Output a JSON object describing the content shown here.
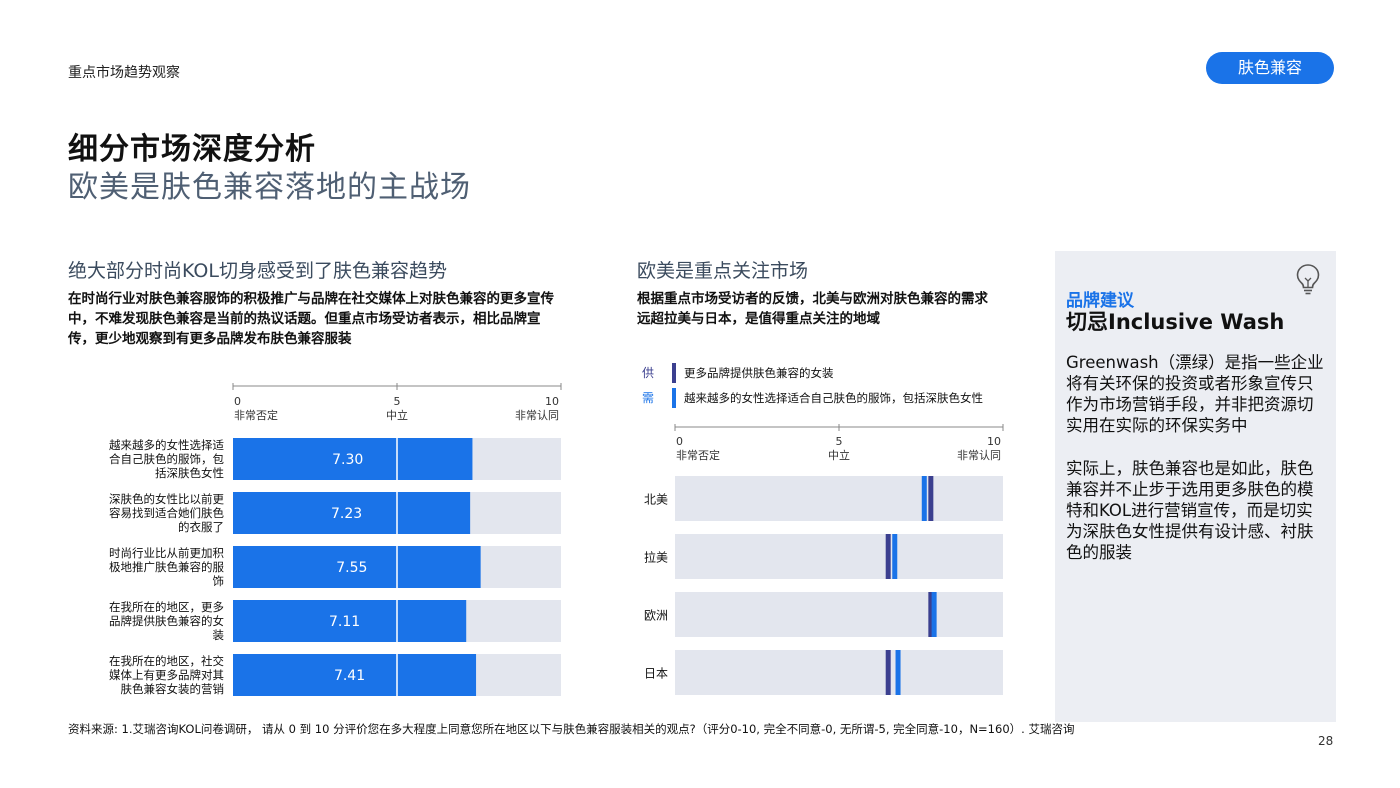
{
  "header": {
    "section": "重点市场趋势观察",
    "tag": "肤色兼容"
  },
  "titles": {
    "line1": "细分市场深度分析",
    "line2": "欧美是肤色兼容落地的主战场"
  },
  "left": {
    "heading": "绝大部分时尚KOL切身感受到了肤色兼容趋势",
    "description": "在时尚行业对肤色兼容服饰的积极推广与品牌在社交媒体上对肤色兼容的更多宣传中，不难发现肤色兼容是当前的热议话题。但重点市场受访者表示，相比品牌宣传，更少地观察到有更多品牌发布肤色兼容服装"
  },
  "middle": {
    "heading": "欧美是重点关注市场",
    "description": "根据重点市场受访者的反馈，北美与欧洲对肤色兼容的需求远超拉美与日本，是值得重点关注的地域"
  },
  "panel": {
    "kicker": "品牌建议",
    "title": "切忌Inclusive Wash",
    "p1": "Greenwash（漂绿）是指一些企业将有关环保的投资或者形象宣传只作为市场营销手段，并非把资源切实用在实际的环保实务中",
    "p2": "实际上，肤色兼容也是如此，肤色兼容并不止步于选用更多肤色的模特和KOL进行营销宣传，而是切实为深肤色女性提供有设计感、衬肤色的服装"
  },
  "footnote": "资料来源: 1.艾瑞咨询KOL问卷调研， 请从 0 到 10 分评价您在多大程度上同意您所在地区以下与肤色兼容服装相关的观点?（评分0-10, 完全不同意-0, 无所谓-5, 完全同意-10，N=160）. 艾瑞咨询",
  "page_number": "28",
  "colors": {
    "accent": "#1a73e8",
    "supply": "#3b3f8f",
    "demand": "#1a73e8",
    "track": "#e3e6ee",
    "title_gray": "#4f5f73"
  },
  "chart_data": [
    {
      "type": "bar",
      "orientation": "horizontal",
      "xlim": [
        0,
        10
      ],
      "ticks": [
        {
          "value": 0,
          "label": "0",
          "caption": "非常否定"
        },
        {
          "value": 5,
          "label": "5",
          "caption": "中立"
        },
        {
          "value": 10,
          "label": "10",
          "caption": "非常认同"
        }
      ],
      "categories": [
        "越来越多的女性选择适合自己肤色的服饰，包括深肤色女性",
        "深肤色的女性比以前更容易找到适合她们肤色的衣服了",
        "时尚行业比从前更加积极地推广肤色兼容的服饰",
        "在我所在的地区，更多品牌提供肤色兼容的女装",
        "在我所在的地区，社交媒体上有更多品牌对其肤色兼容女装的营销"
      ],
      "values": [
        7.3,
        7.23,
        7.55,
        7.11,
        7.41
      ],
      "value_labels": [
        "7.30",
        "7.23",
        "7.55",
        "7.11",
        "7.41"
      ]
    },
    {
      "type": "bar",
      "orientation": "horizontal",
      "subtype": "dot-marker",
      "xlim": [
        0,
        10
      ],
      "ticks": [
        {
          "value": 0,
          "label": "0",
          "caption": "非常否定"
        },
        {
          "value": 5,
          "label": "5",
          "caption": "中立"
        },
        {
          "value": 10,
          "label": "10",
          "caption": "非常认同"
        }
      ],
      "legend": [
        {
          "key": "供",
          "label": "更多品牌提供肤色兼容的女装"
        },
        {
          "key": "需",
          "label": "越来越多的女性选择适合自己肤色的服饰，包括深肤色女性"
        }
      ],
      "categories": [
        "北美",
        "拉美",
        "欧洲",
        "日本"
      ],
      "series": [
        {
          "name": "供",
          "values": [
            7.8,
            6.5,
            7.8,
            6.5
          ]
        },
        {
          "name": "需",
          "values": [
            7.6,
            6.7,
            7.9,
            6.8
          ]
        }
      ]
    }
  ]
}
